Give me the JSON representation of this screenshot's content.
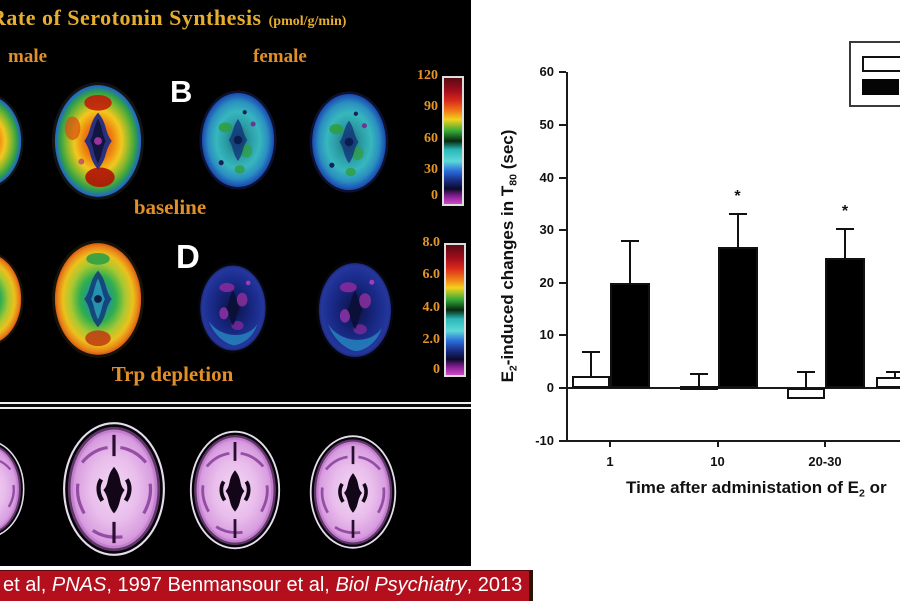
{
  "left_panel": {
    "title": {
      "main": "Rate of Serotonin Synthesis",
      "unit": "(pmol/g/min)"
    },
    "male_label": "male",
    "female_label": "female",
    "row_baseline": {
      "letter": "B",
      "caption": "baseline"
    },
    "row_depletion": {
      "letter": "D",
      "caption": "Trp depletion"
    },
    "colorbar_top": {
      "ticks": [
        "120",
        "90",
        "60",
        "30",
        "0"
      ]
    },
    "colorbar_bottom": {
      "ticks": [
        "8.0",
        "6.0",
        "4.0",
        "2.0",
        "0"
      ]
    }
  },
  "citation": {
    "prefix": "et al, ",
    "journal1": "PNAS",
    "middle": ", 1997  Benmansour et al, ",
    "journal2": "Biol Psychiatry",
    "suffix": ", 2013",
    "bg_color": "#b30f1c",
    "text_color": "#ffffff"
  },
  "chart_data": {
    "type": "bar",
    "categories": [
      "1",
      "10",
      "20-30",
      ""
    ],
    "series": [
      {
        "name": "white",
        "fill": "#ffffff",
        "values": [
          2.3,
          0.4,
          -2.1,
          2.0
        ],
        "error_caps": [
          6.8,
          2.7,
          3.0,
          3.0
        ],
        "significant": [
          false,
          false,
          false,
          false
        ]
      },
      {
        "name": "black",
        "fill": "#000000",
        "values": [
          20.0,
          26.8,
          24.7,
          null
        ],
        "error_caps": [
          28.0,
          33.0,
          30.2,
          null
        ],
        "significant": [
          false,
          true,
          true,
          false
        ]
      }
    ],
    "ylabel": "E2-induced changes in T80 (sec)",
    "xlabel": "Time after administation of E2 or",
    "ylabel_parts": {
      "a": "E",
      "a_sub": "2",
      "b": "-induced changes in T",
      "b_sub": "80",
      "c": " (sec)"
    },
    "xlabel_parts": {
      "a": "Time after administation of E",
      "a_sub": "2",
      "b": " or"
    },
    "ylim": [
      -10,
      60
    ],
    "yticks": [
      60,
      50,
      40,
      30,
      20,
      10,
      0,
      -10
    ],
    "sig_marker": "*",
    "legend_labels_visible": false,
    "grid": false,
    "axis_color": "#1a1a1a"
  }
}
